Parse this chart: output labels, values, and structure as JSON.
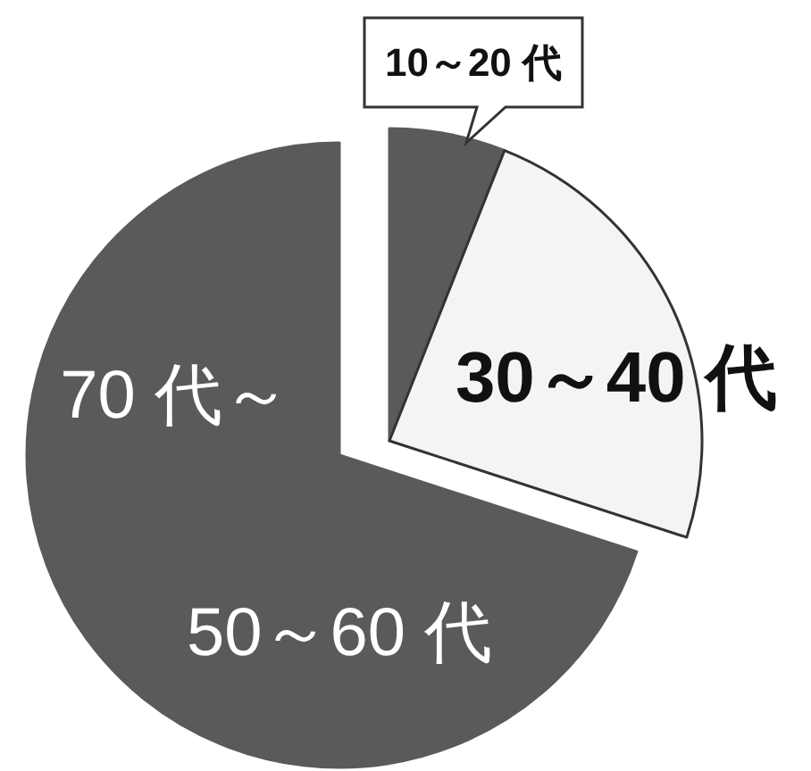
{
  "chart_data": {
    "type": "pie",
    "categories": [
      "10～20 代",
      "30～40 代",
      "50～60 代",
      "70 代～"
    ],
    "values": [
      6,
      24,
      35,
      35
    ],
    "colors": [
      "#5a5a5a",
      "#f4f4f4",
      "#5a5a5a",
      "#5a5a5a"
    ]
  }
}
